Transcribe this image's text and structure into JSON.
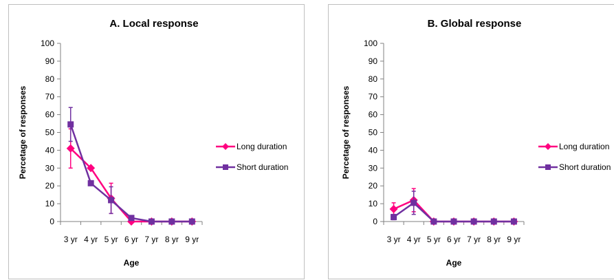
{
  "colors": {
    "long": "#ff0080",
    "short": "#7030a0",
    "axis": "#808080",
    "errorbar_long": "#ff0080",
    "errorbar_short": "#7030a0"
  },
  "chart_data": [
    {
      "type": "line",
      "title": "A. Local response",
      "xlabel": "Age",
      "ylabel": "Percetage of responses",
      "categories": [
        "3 yr",
        "4 yr",
        "5 yr",
        "6 yr",
        "7 yr",
        "8 yr",
        "9 yr"
      ],
      "ylim": [
        0,
        100
      ],
      "yticks": [
        "0",
        "10",
        "20",
        "30",
        "40",
        "50",
        "60",
        "70",
        "80",
        "90",
        "100"
      ],
      "grid": false,
      "legend_position": "right",
      "series": [
        {
          "name": "Long duration",
          "marker": "diamond",
          "values": [
            41,
            30,
            13,
            0,
            0,
            0,
            0
          ],
          "error": [
            11,
            0,
            8.5,
            0,
            0,
            0,
            0
          ]
        },
        {
          "name": "Short duration",
          "marker": "square",
          "values": [
            54.5,
            21.5,
            12,
            2,
            0,
            0,
            0
          ],
          "error": [
            9.5,
            0,
            7.5,
            0,
            0,
            0,
            0
          ]
        }
      ]
    },
    {
      "type": "line",
      "title": "B. Global response",
      "xlabel": "Age",
      "ylabel": "Percetage of responses",
      "categories": [
        "3 yr",
        "4 yr",
        "5 yr",
        "6 yr",
        "7 yr",
        "8 yr",
        "9 yr"
      ],
      "ylim": [
        0,
        100
      ],
      "yticks": [
        "0",
        "10",
        "20",
        "30",
        "40",
        "50",
        "60",
        "70",
        "80",
        "90",
        "100"
      ],
      "grid": false,
      "legend_position": "right",
      "series": [
        {
          "name": "Long duration",
          "marker": "diamond",
          "values": [
            7,
            12,
            0,
            0,
            0,
            0,
            0
          ],
          "error": [
            3.5,
            6.5,
            0,
            0,
            0,
            0,
            0
          ]
        },
        {
          "name": "Short duration",
          "marker": "square",
          "values": [
            2.5,
            10.5,
            0,
            0,
            0,
            0,
            0
          ],
          "error": [
            1.5,
            6.5,
            0,
            0,
            0,
            0,
            0
          ]
        }
      ]
    }
  ]
}
